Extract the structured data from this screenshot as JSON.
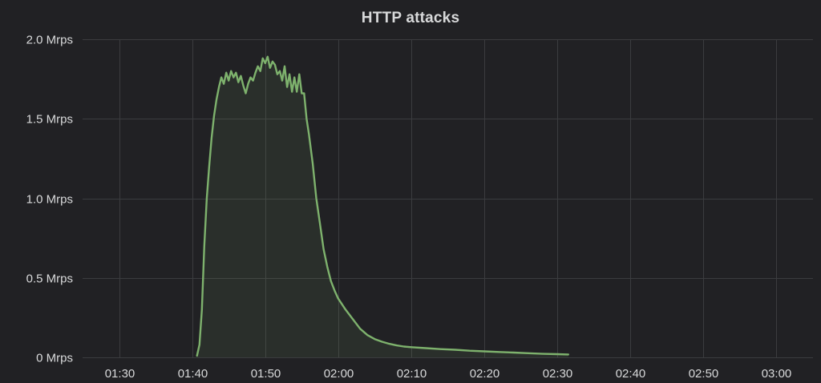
{
  "panel": {
    "title": "HTTP attacks"
  },
  "colors": {
    "background": "#212124",
    "grid": "#3b3c3f",
    "series_line": "#7eb26d",
    "series_fill": "rgba(126,178,109,0.10)",
    "text": "#d8d9da"
  },
  "chart_data": {
    "type": "area",
    "title": "HTTP attacks",
    "xlabel": "",
    "ylabel": "",
    "y_unit": "Mrps",
    "xlim": [
      "01:25",
      "03:05"
    ],
    "ylim": [
      0,
      2.0
    ],
    "grid": true,
    "legend": "none",
    "x_ticks": [
      "01:30",
      "01:40",
      "01:50",
      "02:00",
      "02:10",
      "02:20",
      "02:30",
      "02:40",
      "02:50",
      "03:00"
    ],
    "y_ticks": [
      {
        "value": 0,
        "label": "0 Mrps"
      },
      {
        "value": 0.5,
        "label": "0.5 Mrps"
      },
      {
        "value": 1.0,
        "label": "1.0 Mrps"
      },
      {
        "value": 1.5,
        "label": "1.5 Mrps"
      },
      {
        "value": 2.0,
        "label": "2.0 Mrps"
      }
    ],
    "series": [
      {
        "x": [
          "01:40:40",
          "01:41:00",
          "01:41:20",
          "01:41:40",
          "01:42:00",
          "01:42:20",
          "01:42:40",
          "01:43:00",
          "01:43:20",
          "01:43:40",
          "01:44:00",
          "01:44:20",
          "01:44:40",
          "01:45:00",
          "01:45:20",
          "01:45:40",
          "01:46:00",
          "01:46:20",
          "01:46:40",
          "01:47:00",
          "01:47:20",
          "01:47:40",
          "01:48:00",
          "01:48:20",
          "01:48:40",
          "01:49:00",
          "01:49:20",
          "01:49:40",
          "01:50:00",
          "01:50:20",
          "01:50:40",
          "01:51:00",
          "01:51:20",
          "01:51:40",
          "01:52:00",
          "01:52:20",
          "01:52:40",
          "01:53:00",
          "01:53:20",
          "01:53:40",
          "01:54:00",
          "01:54:20",
          "01:54:40",
          "01:55:00",
          "01:55:20",
          "01:55:40",
          "01:56:00",
          "01:56:30",
          "01:57:00",
          "01:57:30",
          "01:58:00",
          "01:58:30",
          "01:59:00",
          "01:59:30",
          "02:00:00",
          "02:01:00",
          "02:02:00",
          "02:03:00",
          "02:04:00",
          "02:05:00",
          "02:06:00",
          "02:07:00",
          "02:08:00",
          "02:09:00",
          "02:10:00",
          "02:12:00",
          "02:14:00",
          "02:16:00",
          "02:18:00",
          "02:20:00",
          "02:22:00",
          "02:24:00",
          "02:26:00",
          "02:28:00",
          "02:30:00",
          "02:31:30"
        ],
        "values": [
          0.01,
          0.08,
          0.3,
          0.7,
          1.0,
          1.2,
          1.38,
          1.52,
          1.62,
          1.7,
          1.76,
          1.72,
          1.79,
          1.74,
          1.8,
          1.76,
          1.79,
          1.73,
          1.77,
          1.71,
          1.66,
          1.72,
          1.76,
          1.74,
          1.79,
          1.83,
          1.8,
          1.88,
          1.85,
          1.89,
          1.82,
          1.86,
          1.84,
          1.78,
          1.8,
          1.74,
          1.83,
          1.7,
          1.78,
          1.67,
          1.76,
          1.67,
          1.78,
          1.66,
          1.66,
          1.5,
          1.4,
          1.22,
          1.0,
          0.84,
          0.68,
          0.57,
          0.48,
          0.42,
          0.37,
          0.3,
          0.24,
          0.18,
          0.14,
          0.115,
          0.098,
          0.085,
          0.075,
          0.068,
          0.064,
          0.058,
          0.052,
          0.048,
          0.042,
          0.038,
          0.034,
          0.03,
          0.026,
          0.022,
          0.02,
          0.018
        ]
      }
    ]
  }
}
